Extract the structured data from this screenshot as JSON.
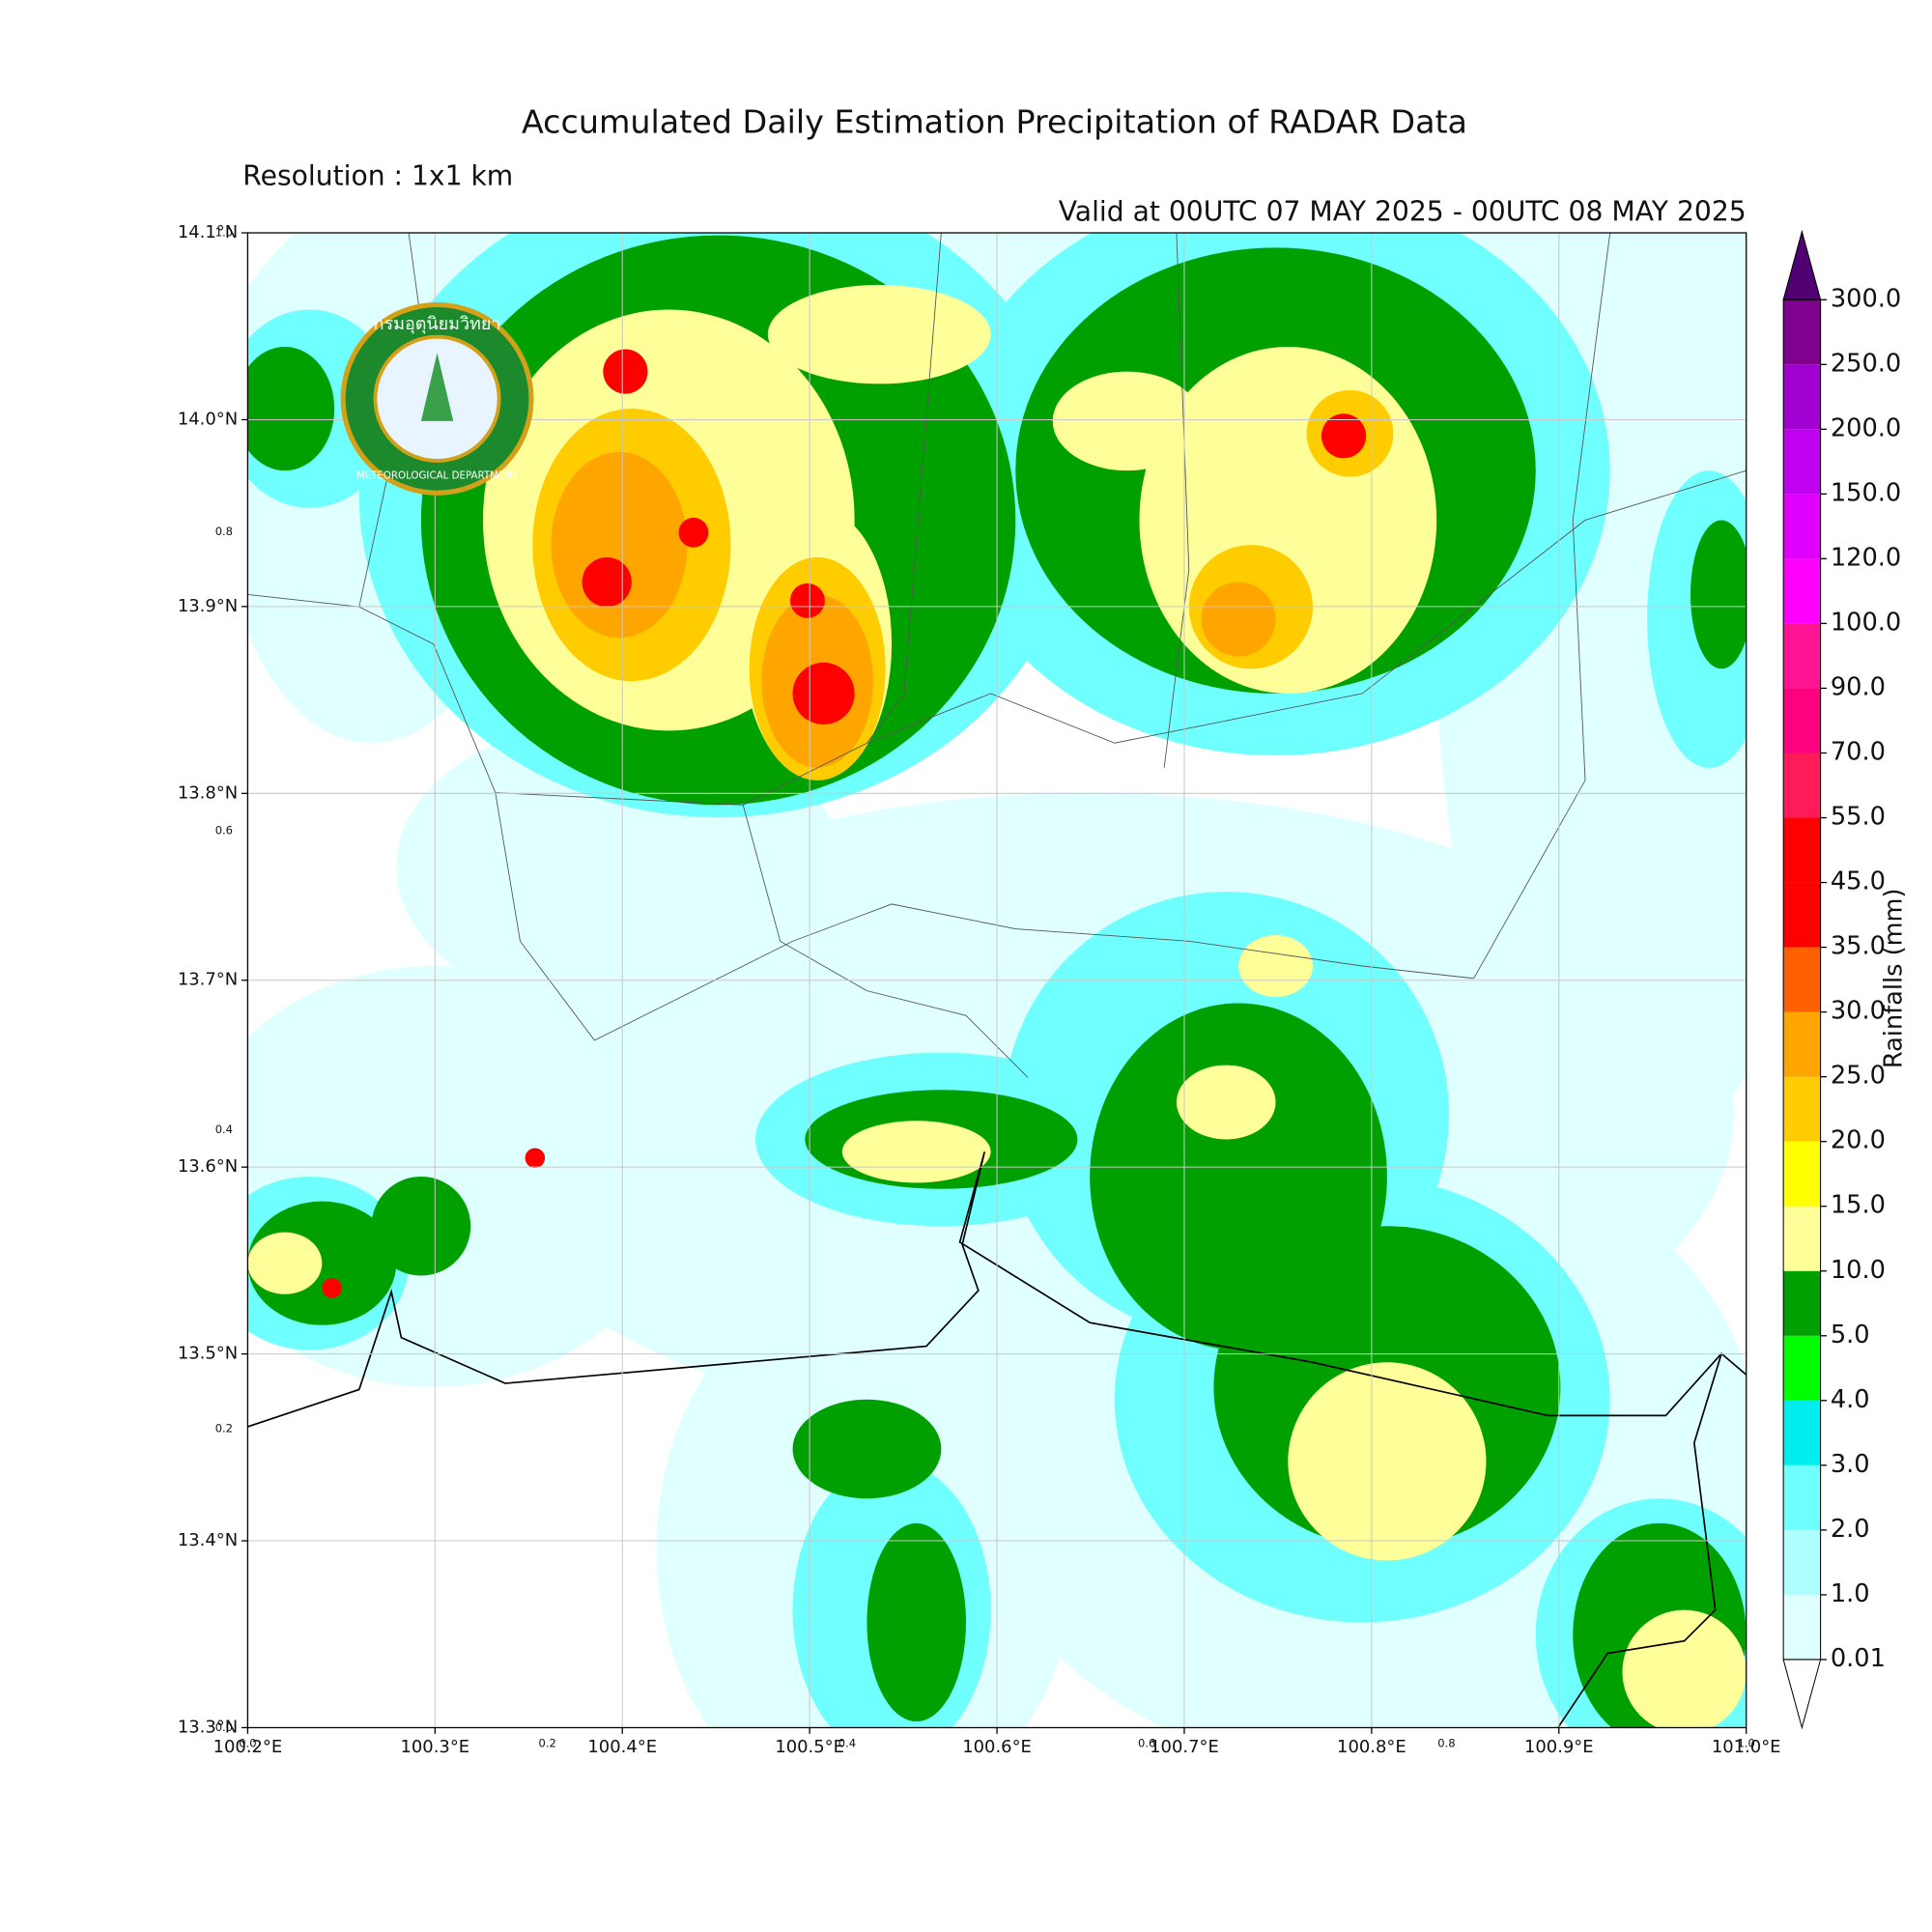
{
  "title": "Accumulated Daily Estimation Precipitation of RADAR Data",
  "resolution": "Resolution : 1x1 km",
  "valid": "Valid at 00UTC 07 MAY 2025 - 00UTC 08 MAY 2025",
  "lon_range": [
    100.2,
    101.0
  ],
  "lat_range": [
    13.3,
    14.1
  ],
  "lon_ticks": [
    {
      "value": 100.2,
      "label": "100.2°E"
    },
    {
      "value": 100.3,
      "label": "100.3°E"
    },
    {
      "value": 100.4,
      "label": "100.4°E"
    },
    {
      "value": 100.5,
      "label": "100.5°E"
    },
    {
      "value": 100.6,
      "label": "100.6°E"
    },
    {
      "value": 100.7,
      "label": "100.7°E"
    },
    {
      "value": 100.8,
      "label": "100.8°E"
    },
    {
      "value": 100.9,
      "label": "100.9°E"
    },
    {
      "value": 101.0,
      "label": "101.0°E"
    }
  ],
  "lat_ticks": [
    {
      "value": 14.1,
      "label": "14.1°N"
    },
    {
      "value": 14.0,
      "label": "14.0°N"
    },
    {
      "value": 13.9,
      "label": "13.9°N"
    },
    {
      "value": 13.8,
      "label": "13.8°N"
    },
    {
      "value": 13.7,
      "label": "13.7°N"
    },
    {
      "value": 13.6,
      "label": "13.6°N"
    },
    {
      "value": 13.5,
      "label": "13.5°N"
    },
    {
      "value": 13.4,
      "label": "13.4°N"
    },
    {
      "value": 13.3,
      "label": "13.3°N"
    }
  ],
  "frame_ticks": [
    {
      "value": 0,
      "label": "0.0"
    },
    0.2,
    0.4,
    0.6,
    0.8,
    {
      "value": 1,
      "label": "1.0"
    }
  ],
  "colorbar": {
    "label": "Rainfalls (mm)",
    "levels": [
      {
        "value": 0.01,
        "label": "0.01"
      },
      {
        "value": 1,
        "label": "1.0"
      },
      {
        "value": 2,
        "label": "2.0"
      },
      {
        "value": 3,
        "label": "3.0"
      },
      {
        "value": 4,
        "label": "4.0"
      },
      {
        "value": 5,
        "label": "5.0"
      },
      {
        "value": 10,
        "label": "10.0"
      },
      {
        "value": 15,
        "label": "15.0"
      },
      {
        "value": 20,
        "label": "20.0"
      },
      {
        "value": 25,
        "label": "25.0"
      },
      {
        "value": 30,
        "label": "30.0"
      },
      {
        "value": 35,
        "label": "35.0"
      },
      {
        "value": 45,
        "label": "45.0"
      },
      {
        "value": 55,
        "label": "55.0"
      },
      {
        "value": 70,
        "label": "70.0"
      },
      {
        "value": 90,
        "label": "90.0"
      },
      {
        "value": 100,
        "label": "100.0"
      },
      {
        "value": 120,
        "label": "120.0"
      },
      {
        "value": 150,
        "label": "150.0"
      },
      {
        "value": 200,
        "label": "200.0"
      },
      {
        "value": 250,
        "label": "250.0"
      },
      {
        "value": 300,
        "label": "300.0"
      }
    ],
    "colors": [
      "#e0ffff",
      "#b0ffff",
      "#70ffff",
      "#00eeee",
      "#00ff00",
      "#00a000",
      "#ffff99",
      "#ffff00",
      "#ffcc00",
      "#ffa500",
      "#ff6000",
      "#ff0000",
      "#ff0000",
      "#ff1a5a",
      "#ff0080",
      "#ff1493",
      "#ff00ff",
      "#e000ff",
      "#c000f0",
      "#a000d0",
      "#800090"
    ],
    "over_color": "#500070",
    "under_color": "#ffffff"
  },
  "logo": {
    "thai": "กรมอุตุนิยมวิทยา",
    "english": "METEOROLOGICAL DEPARTMENT"
  }
}
